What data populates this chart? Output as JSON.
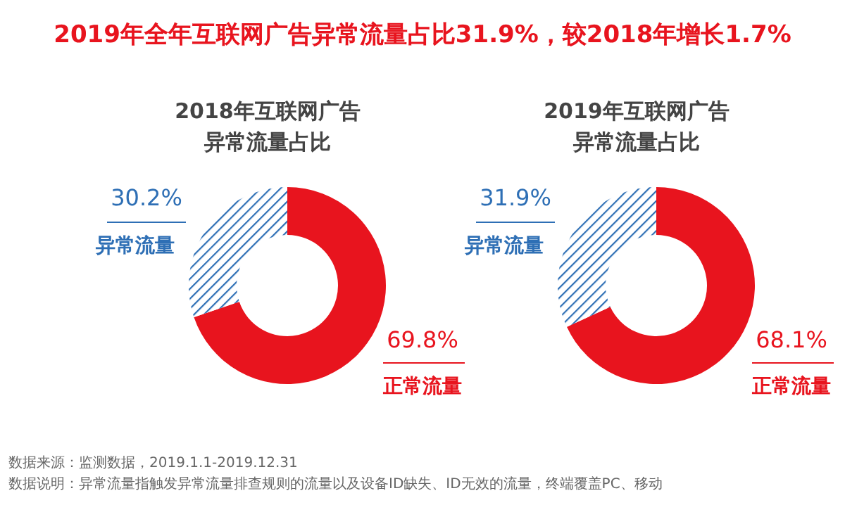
{
  "chart_data": [
    {
      "type": "other",
      "title": "2019年全年互联网广告异常流量占比31.9%，较2018年增长1.7%",
      "annotations": [
        "数据来源：监测数据，2019.1.1-2019.12.31",
        "数据说明：异常流量指触发异常流量排查规则的流量以及设备ID缺失、ID无效的流量，终端覆盖PC、移动"
      ]
    },
    {
      "type": "donut",
      "title": "2018年互联网广告异常流量占比",
      "categories": [
        "正常流量",
        "异常流量"
      ],
      "values": [
        69.8,
        30.2
      ],
      "value_labels": [
        "69.8%",
        "30.2%"
      ],
      "colors": [
        "#e8141e",
        "#2e6fb5"
      ]
    },
    {
      "type": "donut",
      "title": "2019年互联网广告异常流量占比",
      "categories": [
        "正常流量",
        "异常流量"
      ],
      "values": [
        68.1,
        31.9
      ],
      "value_labels": [
        "68.1%",
        "31.9%"
      ],
      "colors": [
        "#e8141e",
        "#2e6fb5"
      ]
    }
  ]
}
